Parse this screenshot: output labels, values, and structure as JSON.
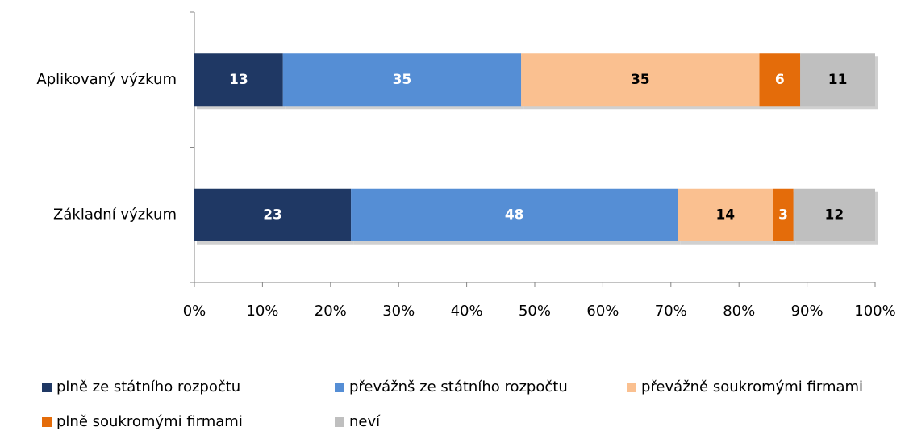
{
  "chart_data": {
    "type": "stacked_barh",
    "categories": [
      "Aplikovaný výzkum",
      "Základní výzkum"
    ],
    "series": [
      {
        "name": "plně ze státního rozpočtu",
        "color": "#1f3864",
        "values": [
          13,
          23
        ]
      },
      {
        "name": "převážnš ze státního rozpočtu",
        "color": "#558ed5",
        "values": [
          35,
          48
        ]
      },
      {
        "name": "převážně soukromými firmami",
        "color": "#fac090",
        "values": [
          35,
          14
        ]
      },
      {
        "name": "plně soukromými firmami",
        "color": "#e46c0a",
        "values": [
          6,
          3
        ]
      },
      {
        "name": "neví",
        "color": "#bfbfbf",
        "values": [
          11,
          12
        ]
      }
    ],
    "xlim": [
      0,
      100
    ],
    "xticks": [
      {
        "value": 0,
        "label": "0%"
      },
      {
        "value": 10,
        "label": "10%"
      },
      {
        "value": 20,
        "label": "20%"
      },
      {
        "value": 30,
        "label": "30%"
      },
      {
        "value": 40,
        "label": "40%"
      },
      {
        "value": 50,
        "label": "50%"
      },
      {
        "value": 60,
        "label": "60%"
      },
      {
        "value": 70,
        "label": "70%"
      },
      {
        "value": 80,
        "label": "80%"
      },
      {
        "value": 90,
        "label": "90%"
      },
      {
        "value": 100,
        "label": "100%"
      }
    ],
    "legend": "bottom"
  }
}
